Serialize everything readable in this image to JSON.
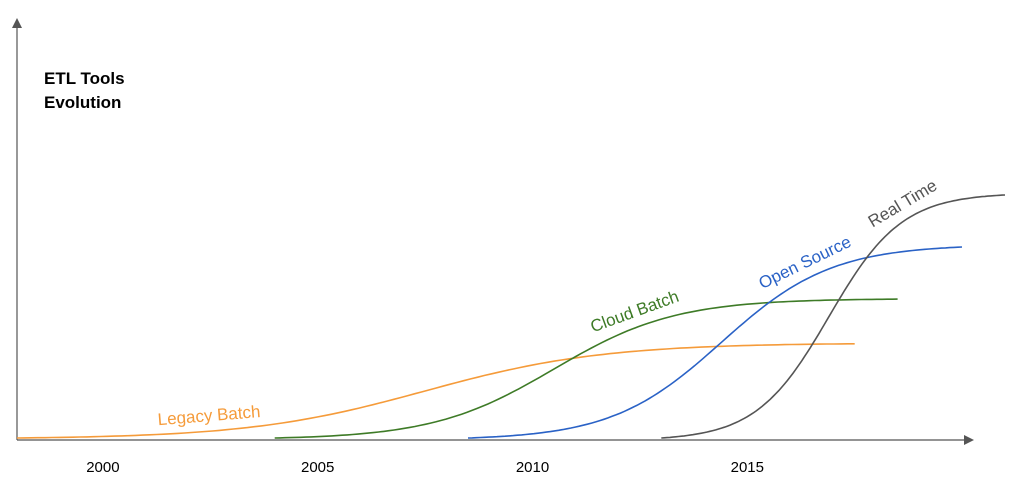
{
  "chart_data": {
    "type": "line",
    "title": [
      "ETL Tools",
      "Evolution"
    ],
    "xlabel": "",
    "ylabel": "",
    "x_ticks": [
      2000,
      2005,
      2010,
      2015
    ],
    "xlim": [
      1998,
      2021
    ],
    "ylim": [
      0,
      1.0
    ],
    "grid": false,
    "legend": "none (series labels drawn inline next to curves)",
    "series": [
      {
        "name": "Legacy Batch",
        "color": "#f59b3a",
        "curve": "s-curve",
        "x_start": 1998,
        "x_end": 2017.5,
        "midpoint": 2007.5,
        "plateau": 0.38,
        "label_at_x": 2002.5
      },
      {
        "name": "Cloud Batch",
        "color": "#3e7b27",
        "curve": "s-curve",
        "x_start": 2004,
        "x_end": 2018.5,
        "midpoint": 2010.5,
        "plateau": 0.56,
        "label_at_x": 2012.5
      },
      {
        "name": "Open Source",
        "color": "#2a62c6",
        "curve": "s-curve",
        "x_start": 2008.5,
        "x_end": 2020,
        "midpoint": 2014.4,
        "plateau": 0.77,
        "label_at_x": 2016.5
      },
      {
        "name": "Real Time",
        "color": "#555555",
        "curve": "s-curve",
        "x_start": 2013,
        "x_end": 2021,
        "midpoint": 2016.9,
        "plateau": 0.98,
        "label_at_x": 2018.8
      }
    ]
  }
}
